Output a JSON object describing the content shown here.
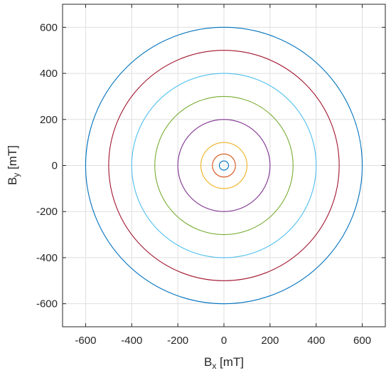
{
  "chart_data": {
    "type": "line",
    "title": "",
    "xlabel": {
      "main": "B",
      "sub": "x",
      "unit": " [mT]"
    },
    "ylabel": {
      "main": "B",
      "sub": "y",
      "unit": " [mT]"
    },
    "xlim": [
      -700,
      700
    ],
    "ylim": [
      -700,
      700
    ],
    "xticks": [
      -600,
      -400,
      -200,
      0,
      200,
      400,
      600
    ],
    "yticks": [
      -600,
      -400,
      -200,
      0,
      200,
      400,
      600
    ],
    "grid": true,
    "series": [
      {
        "radius": 600,
        "color": "#0072BD"
      },
      {
        "radius": 500,
        "color": "#A2142F"
      },
      {
        "radius": 400,
        "color": "#4DBEEE"
      },
      {
        "radius": 300,
        "color": "#77AC30"
      },
      {
        "radius": 200,
        "color": "#7E2F8E"
      },
      {
        "radius": 100,
        "color": "#EDB120"
      },
      {
        "radius": 50,
        "color": "#D95319"
      },
      {
        "radius": 20,
        "color": "#0072BD"
      }
    ]
  }
}
